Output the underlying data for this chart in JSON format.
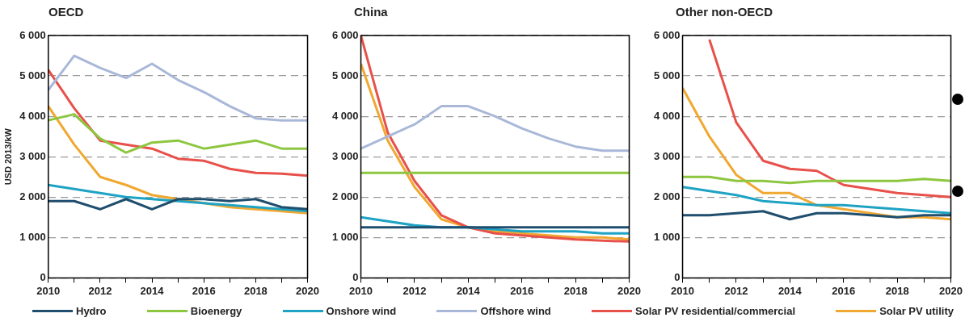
{
  "chart_data": [
    {
      "type": "line",
      "title": "OECD",
      "ylabel": "USD 2013/kW",
      "x": [
        2010,
        2011,
        2012,
        2013,
        2014,
        2015,
        2016,
        2017,
        2018,
        2019,
        2020
      ],
      "xlim": [
        2010,
        2020
      ],
      "xticks": [
        2010,
        {
          "value": 2011,
          "label": null
        },
        2012,
        {
          "value": 2013,
          "label": null
        },
        2014,
        {
          "value": 2015,
          "label": null
        },
        2016,
        {
          "value": 2017,
          "label": null
        },
        2018,
        {
          "value": 2019,
          "label": null
        },
        2020
      ],
      "ylim": [
        0,
        6000
      ],
      "yticks": [
        {
          "value": 0,
          "label": "0"
        },
        {
          "value": 1000,
          "label": "1 000"
        },
        {
          "value": 2000,
          "label": "2 000"
        },
        {
          "value": 3000,
          "label": "3 000"
        },
        {
          "value": 4000,
          "label": "4 000"
        },
        {
          "value": 5000,
          "label": "5 000"
        },
        {
          "value": 6000,
          "label": "6 000"
        }
      ],
      "grid": "y",
      "legend": "bottom",
      "marker": "none",
      "line_style": "solid",
      "series": [
        {
          "name": "Hydro",
          "color": "#1f4e6e",
          "values": [
            1900,
            1900,
            1700,
            1950,
            1700,
            1950,
            1950,
            1900,
            1950,
            1750,
            1700
          ]
        },
        {
          "name": "Bioenergy",
          "color": "#8dc63f",
          "values": [
            3900,
            4050,
            3450,
            3100,
            3350,
            3400,
            3200,
            3300,
            3400,
            3200,
            3200
          ]
        },
        {
          "name": "Onshore wind",
          "color": "#1fa3c4",
          "values": [
            2300,
            2200,
            2100,
            2000,
            1950,
            1900,
            1850,
            1800,
            1750,
            1700,
            1650
          ]
        },
        {
          "name": "Offshore wind",
          "color": "#a9b8d8",
          "values": [
            4650,
            5500,
            5200,
            4950,
            5300,
            4900,
            4600,
            4250,
            3950,
            3900,
            3900
          ]
        },
        {
          "name": "Solar PV residential/commercial",
          "color": "#e8504a",
          "values": [
            5150,
            4200,
            3400,
            3300,
            3200,
            2950,
            2900,
            2700,
            2600,
            2580,
            2530
          ]
        },
        {
          "name": "Solar PV utility",
          "color": "#f0a830",
          "values": [
            4250,
            3300,
            2500,
            2300,
            2050,
            1950,
            1850,
            1750,
            1700,
            1650,
            1600
          ]
        }
      ]
    },
    {
      "type": "line",
      "title": "China",
      "x": [
        2010,
        2011,
        2012,
        2013,
        2014,
        2015,
        2016,
        2017,
        2018,
        2019,
        2020
      ],
      "xlim": [
        2010,
        2020
      ],
      "xticks": [
        2010,
        {
          "value": 2011,
          "label": null
        },
        2012,
        {
          "value": 2013,
          "label": null
        },
        2014,
        {
          "value": 2015,
          "label": null
        },
        2016,
        {
          "value": 2017,
          "label": null
        },
        2018,
        {
          "value": 2019,
          "label": null
        },
        2020
      ],
      "ylim": [
        0,
        6000
      ],
      "yticks": [
        {
          "value": 0,
          "label": "0"
        },
        {
          "value": 1000,
          "label": "1 000"
        },
        {
          "value": 2000,
          "label": "2 000"
        },
        {
          "value": 3000,
          "label": "3 000"
        },
        {
          "value": 4000,
          "label": "4 000"
        },
        {
          "value": 5000,
          "label": "5 000"
        },
        {
          "value": 6000,
          "label": "6 000"
        }
      ],
      "grid": "y",
      "marker": "none",
      "line_style": "solid",
      "series": [
        {
          "color": "#1f4e6e",
          "values": [
            1250,
            1250,
            1250,
            1250,
            1250,
            1250,
            1250,
            1250,
            1250,
            1250,
            1250
          ]
        },
        {
          "color": "#8dc63f",
          "values": [
            2600,
            2600,
            2600,
            2600,
            2600,
            2600,
            2600,
            2600,
            2600,
            2600,
            2600
          ]
        },
        {
          "color": "#1fa3c4",
          "values": [
            1500,
            1400,
            1300,
            1250,
            1250,
            1200,
            1150,
            1150,
            1150,
            1100,
            1100
          ]
        },
        {
          "color": "#a9b8d8",
          "values": [
            3200,
            3500,
            3800,
            4250,
            4250,
            4000,
            3700,
            3450,
            3250,
            3150,
            3150
          ]
        },
        {
          "color": "#e8504a",
          "values": [
            6000,
            3600,
            2400,
            1550,
            1250,
            1100,
            1050,
            1000,
            950,
            920,
            900
          ]
        },
        {
          "color": "#f0a830",
          "values": [
            5300,
            3400,
            2250,
            1450,
            1250,
            1150,
            1100,
            1050,
            1000,
            1000,
            950
          ]
        }
      ]
    },
    {
      "type": "line",
      "title": "Other non-OECD",
      "x": [
        2010,
        2011,
        2012,
        2013,
        2014,
        2015,
        2016,
        2017,
        2018,
        2019,
        2020
      ],
      "xlim": [
        2010,
        2020
      ],
      "xticks": [
        2010,
        {
          "value": 2011,
          "label": null
        },
        2012,
        {
          "value": 2013,
          "label": null
        },
        2014,
        {
          "value": 2015,
          "label": null
        },
        2016,
        {
          "value": 2017,
          "label": null
        },
        2018,
        {
          "value": 2019,
          "label": null
        },
        2020
      ],
      "ylim": [
        0,
        6000
      ],
      "yticks": [
        {
          "value": 0,
          "label": "0"
        },
        {
          "value": 1000,
          "label": "1 000"
        },
        {
          "value": 2000,
          "label": "2 000"
        },
        {
          "value": 3000,
          "label": "3 000"
        },
        {
          "value": 4000,
          "label": "4 000"
        },
        {
          "value": 5000,
          "label": "5 000"
        },
        {
          "value": 6000,
          "label": "6 000"
        }
      ],
      "grid": "y",
      "marker": "none",
      "line_style": "solid",
      "series": [
        {
          "color": "#1f4e6e",
          "values": [
            1550,
            1550,
            1600,
            1650,
            1450,
            1600,
            1600,
            1550,
            1500,
            1550,
            1550
          ]
        },
        {
          "color": "#8dc63f",
          "values": [
            2500,
            2500,
            2400,
            2400,
            2350,
            2400,
            2400,
            2400,
            2400,
            2450,
            2400
          ]
        },
        {
          "color": "#1fa3c4",
          "values": [
            2250,
            2150,
            2050,
            1900,
            1850,
            1800,
            1800,
            1750,
            1700,
            1650,
            1600
          ]
        },
        {
          "color": "#e8504a",
          "values": [
            null,
            5900,
            3850,
            2900,
            2700,
            2650,
            2300,
            2200,
            2100,
            2050,
            2000
          ]
        },
        {
          "color": "#f0a830",
          "values": [
            4700,
            3500,
            2550,
            2100,
            2100,
            1800,
            1700,
            1600,
            1500,
            1500,
            1450
          ]
        }
      ]
    }
  ]
}
